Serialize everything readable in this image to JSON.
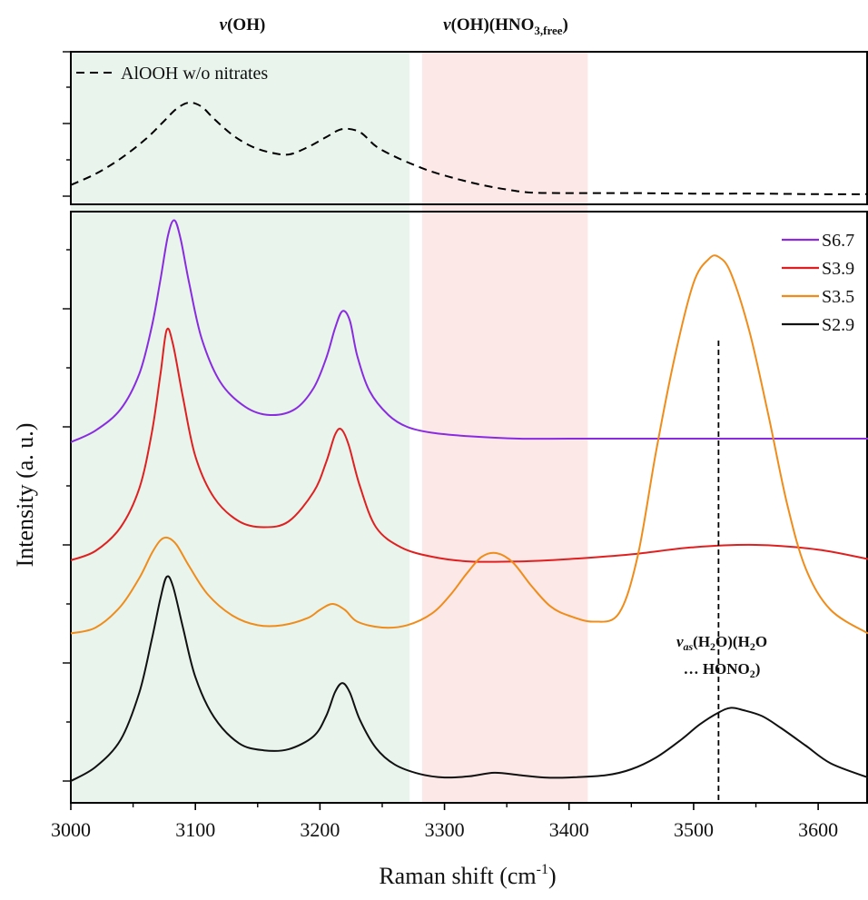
{
  "chart_data": {
    "type": "line",
    "title": "",
    "xlabel_main": "Raman shift (cm",
    "xlabel_sup": "-1",
    "xlabel_close": ")",
    "ylabel": "Intensity (a. u.)",
    "xlim": [
      3000,
      3640
    ],
    "x_ticks": [
      "3000",
      "3100",
      "3200",
      "3300",
      "3400",
      "3500",
      "3600"
    ],
    "grid": false,
    "legend_position": "top-right",
    "regions": [
      {
        "label": "v(OH)",
        "x_start": 3000,
        "x_end": 3272,
        "color": "#e8f4ec"
      },
      {
        "label": "v(OH)(HNO3,free)",
        "x_start": 3282,
        "x_end": 3415,
        "color": "#fbe8e7"
      }
    ],
    "band_titles": {
      "oh": {
        "italic": "v",
        "rest": "(OH)"
      },
      "free": {
        "italic": "v",
        "rest": "(OH)(HNO",
        "sub1": "3,free",
        "close": ")"
      }
    },
    "top_panel": {
      "series": [
        {
          "name": "AlOOH w/o nitrates",
          "color": "#000000",
          "dash": true,
          "x": [
            3000,
            3020,
            3040,
            3060,
            3075,
            3085,
            3095,
            3105,
            3115,
            3130,
            3145,
            3160,
            3175,
            3190,
            3205,
            3218,
            3232,
            3245,
            3260,
            3275,
            3290,
            3310,
            3330,
            3350,
            3370,
            3400,
            3450,
            3500,
            3550,
            3600,
            3640
          ],
          "y": [
            0.11,
            0.22,
            0.37,
            0.56,
            0.74,
            0.86,
            0.92,
            0.88,
            0.76,
            0.6,
            0.49,
            0.43,
            0.41,
            0.48,
            0.58,
            0.66,
            0.63,
            0.49,
            0.39,
            0.31,
            0.24,
            0.17,
            0.11,
            0.065,
            0.035,
            0.03,
            0.03,
            0.025,
            0.025,
            0.02,
            0.02
          ]
        }
      ]
    },
    "main_panel": {
      "series": [
        {
          "name": "S6.7",
          "color": "#8a2be2",
          "x": [
            3000,
            3020,
            3040,
            3055,
            3065,
            3072,
            3078,
            3083,
            3088,
            3095,
            3105,
            3120,
            3140,
            3160,
            3180,
            3195,
            3205,
            3212,
            3218,
            3224,
            3230,
            3240,
            3255,
            3270,
            3290,
            3320,
            3360,
            3400,
            3500,
            3640
          ],
          "y": [
            2.87,
            2.97,
            3.15,
            3.45,
            3.85,
            4.25,
            4.62,
            4.75,
            4.6,
            4.22,
            3.75,
            3.38,
            3.17,
            3.1,
            3.15,
            3.33,
            3.58,
            3.83,
            3.98,
            3.9,
            3.6,
            3.3,
            3.1,
            3.0,
            2.95,
            2.92,
            2.9,
            2.9,
            2.9,
            2.9
          ]
        },
        {
          "name": "S3.9",
          "color": "#e02020",
          "x": [
            3000,
            3020,
            3040,
            3055,
            3065,
            3072,
            3077,
            3082,
            3090,
            3100,
            3115,
            3135,
            3155,
            3175,
            3195,
            3205,
            3212,
            3217,
            3223,
            3232,
            3245,
            3265,
            3290,
            3320,
            3360,
            3400,
            3450,
            3500,
            3550,
            3600,
            3640
          ],
          "y": [
            1.87,
            1.95,
            2.15,
            2.48,
            2.95,
            3.45,
            3.82,
            3.7,
            3.25,
            2.75,
            2.4,
            2.2,
            2.15,
            2.2,
            2.45,
            2.7,
            2.93,
            2.98,
            2.85,
            2.5,
            2.15,
            1.98,
            1.9,
            1.86,
            1.86,
            1.88,
            1.92,
            1.98,
            2.0,
            1.96,
            1.88
          ]
        },
        {
          "name": "S3.5",
          "color": "#f08c1a",
          "x": [
            3000,
            3020,
            3040,
            3055,
            3065,
            3072,
            3078,
            3085,
            3095,
            3110,
            3130,
            3150,
            3170,
            3190,
            3200,
            3210,
            3220,
            3230,
            3250,
            3270,
            3290,
            3305,
            3318,
            3330,
            3342,
            3355,
            3370,
            3385,
            3400,
            3420,
            3440,
            3455,
            3470,
            3485,
            3500,
            3512,
            3520,
            3530,
            3545,
            3560,
            3575,
            3590,
            3610,
            3640
          ],
          "y": [
            1.25,
            1.3,
            1.48,
            1.72,
            1.93,
            2.04,
            2.06,
            2.0,
            1.82,
            1.58,
            1.4,
            1.32,
            1.32,
            1.38,
            1.45,
            1.5,
            1.45,
            1.35,
            1.3,
            1.32,
            1.42,
            1.58,
            1.76,
            1.9,
            1.93,
            1.85,
            1.65,
            1.48,
            1.4,
            1.35,
            1.42,
            1.9,
            2.8,
            3.6,
            4.22,
            4.42,
            4.44,
            4.3,
            3.8,
            3.1,
            2.35,
            1.8,
            1.45,
            1.25
          ]
        },
        {
          "name": "S2.9",
          "color": "#111111",
          "x": [
            3000,
            3020,
            3040,
            3055,
            3065,
            3072,
            3077,
            3082,
            3090,
            3100,
            3115,
            3135,
            3155,
            3175,
            3195,
            3205,
            3212,
            3218,
            3224,
            3232,
            3245,
            3260,
            3280,
            3300,
            3320,
            3340,
            3360,
            3380,
            3400,
            3430,
            3450,
            3470,
            3490,
            3505,
            3520,
            3530,
            3540,
            3555,
            3570,
            3590,
            3610,
            3640
          ],
          "y": [
            0.0,
            0.12,
            0.35,
            0.75,
            1.2,
            1.55,
            1.73,
            1.65,
            1.3,
            0.88,
            0.54,
            0.32,
            0.26,
            0.27,
            0.38,
            0.55,
            0.75,
            0.83,
            0.75,
            0.52,
            0.28,
            0.14,
            0.06,
            0.03,
            0.04,
            0.07,
            0.05,
            0.03,
            0.03,
            0.05,
            0.1,
            0.2,
            0.35,
            0.48,
            0.58,
            0.62,
            0.6,
            0.55,
            0.45,
            0.3,
            0.15,
            0.03
          ]
        }
      ]
    },
    "vline_x": 3520,
    "annotation": {
      "line1_italic": "v",
      "line1_sub_italic": "as",
      "line1_a": "(H",
      "line1_sub2": "2",
      "line1_b": "O)(H",
      "line1_sub3": "2",
      "line1_c": "O",
      "line2_a": "… HONO",
      "line2_sub": "2",
      "line2_b": ")"
    }
  }
}
